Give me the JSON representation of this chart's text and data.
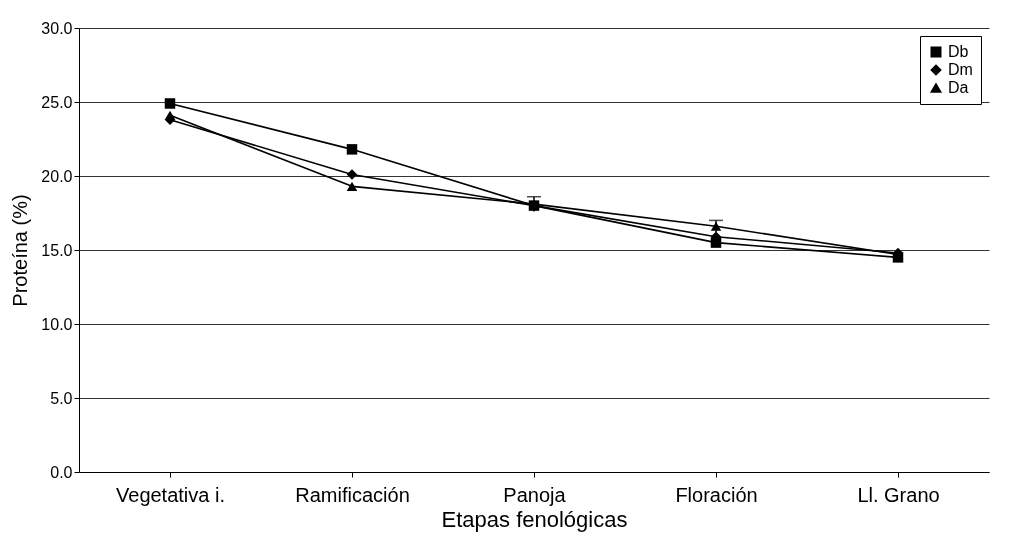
{
  "chart_data": {
    "type": "line",
    "xlabel": "Etapas fenológicas",
    "ylabel": "Proteína (%)",
    "categories": [
      "Vegetativa i.",
      "Ramificación",
      "Panoja",
      "Floración",
      "Ll. Grano"
    ],
    "series": [
      {
        "name": "Db",
        "color": "#000000",
        "marker": "square",
        "values": [
          24.9,
          21.8,
          18.0,
          15.5,
          14.5
        ]
      },
      {
        "name": "Dm",
        "color": "#000000",
        "marker": "diamond",
        "values": [
          23.8,
          20.1,
          18.0,
          15.9,
          14.8
        ]
      },
      {
        "name": "Da",
        "color": "#000000",
        "marker": "triangle",
        "values": [
          24.1,
          19.3,
          18.1,
          16.6,
          14.7
        ],
        "errors": [
          null,
          null,
          0.5,
          0.4,
          null
        ]
      }
    ],
    "ylim": [
      0,
      30
    ],
    "yticks": [
      {
        "value": 0,
        "label": "0.0"
      },
      {
        "value": 5,
        "label": "5.0"
      },
      {
        "value": 10,
        "label": "10.0"
      },
      {
        "value": 15,
        "label": "15.0"
      },
      {
        "value": 20,
        "label": "20.0"
      },
      {
        "value": 25,
        "label": "25.0"
      },
      {
        "value": 30,
        "label": "30.0"
      }
    ],
    "grid": "y",
    "legend": "top right"
  }
}
